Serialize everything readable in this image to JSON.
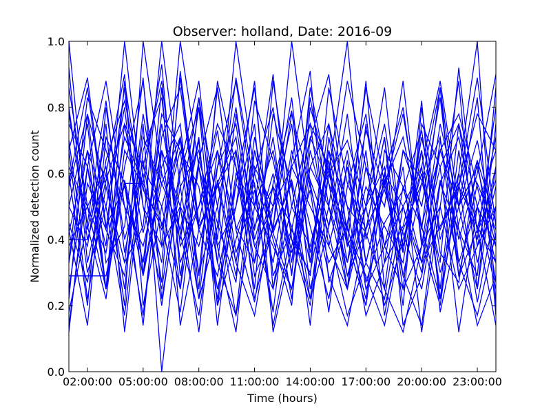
{
  "chart_data": {
    "type": "line",
    "title": "Observer: holland, Date: 2016-09",
    "xlabel": "Time (hours)",
    "ylabel": "Normalized detection count",
    "xlim": [
      1.0,
      24.0
    ],
    "ylim": [
      0.0,
      1.0
    ],
    "x_ticks": [
      {
        "value": 2,
        "label": "02:00:00"
      },
      {
        "value": 5,
        "label": "05:00:00"
      },
      {
        "value": 8,
        "label": "08:00:00"
      },
      {
        "value": 11,
        "label": "11:00:00"
      },
      {
        "value": 14,
        "label": "14:00:00"
      },
      {
        "value": 17,
        "label": "17:00:00"
      },
      {
        "value": 20,
        "label": "20:00:00"
      },
      {
        "value": 23,
        "label": "23:00:00"
      }
    ],
    "y_ticks": [
      {
        "value": 0.0,
        "label": "0.0"
      },
      {
        "value": 0.2,
        "label": "0.2"
      },
      {
        "value": 0.4,
        "label": "0.4"
      },
      {
        "value": 0.6,
        "label": "0.6"
      },
      {
        "value": 0.8,
        "label": "0.8"
      },
      {
        "value": 1.0,
        "label": "1.0"
      }
    ],
    "x": [
      1,
      2,
      3,
      4,
      5,
      6,
      7,
      8,
      9,
      10,
      11,
      12,
      13,
      14,
      15,
      16,
      17,
      18,
      19,
      20,
      21,
      22,
      23,
      24
    ],
    "line_color": "#0000ff",
    "grid": false,
    "series": [
      {
        "values": [
          1.0,
          0.43,
          0.71,
          0.57,
          0.29,
          0.86,
          0.14,
          0.43,
          0.57,
          0.29,
          0.71,
          0.43,
          1.0,
          0.57,
          0.29,
          0.14,
          0.43,
          0.71,
          0.29,
          0.57,
          0.86,
          0.43,
          0.14,
          0.29
        ]
      },
      {
        "values": [
          0.12,
          0.62,
          0.25,
          0.88,
          0.5,
          0.38,
          1.0,
          0.62,
          0.25,
          0.5,
          0.75,
          0.12,
          0.38,
          0.62,
          0.5,
          0.25,
          0.75,
          0.38,
          0.62,
          0.12,
          0.5,
          0.88,
          0.25,
          0.62
        ]
      },
      {
        "values": [
          0.8,
          0.4,
          0.6,
          0.2,
          1.0,
          0.6,
          0.4,
          0.8,
          0.2,
          0.4,
          0.6,
          0.8,
          0.4,
          0.2,
          0.6,
          1.0,
          0.4,
          0.6,
          0.2,
          0.8,
          0.4,
          0.6,
          1.0,
          0.2
        ]
      },
      {
        "values": [
          0.33,
          0.67,
          0.5,
          0.17,
          0.67,
          0.83,
          0.33,
          0.5,
          0.67,
          0.33,
          0.17,
          0.5,
          0.83,
          0.33,
          0.67,
          0.5,
          0.17,
          0.33,
          0.67,
          0.5,
          0.83,
          0.33,
          0.5,
          0.67
        ]
      },
      {
        "values": [
          0.67,
          0.89,
          0.44,
          0.56,
          0.33,
          0.78,
          0.67,
          0.22,
          0.44,
          0.89,
          0.56,
          0.33,
          0.67,
          0.44,
          0.22,
          0.56,
          0.78,
          0.33,
          0.44,
          0.67,
          0.22,
          0.56,
          0.89,
          0.44
        ]
      },
      {
        "values": [
          0.29,
          0.29,
          0.29,
          0.57,
          0.57,
          0.43,
          0.71,
          0.43,
          0.29,
          0.57,
          0.43,
          0.71,
          0.29,
          0.86,
          0.57,
          0.43,
          0.29,
          0.14,
          0.43,
          0.57,
          0.71,
          0.29,
          0.43,
          0.14
        ]
      },
      {
        "values": [
          0.5,
          0.75,
          0.25,
          0.62,
          0.88,
          0.38,
          0.5,
          0.12,
          0.62,
          0.75,
          0.38,
          0.25,
          0.5,
          0.75,
          0.62,
          0.38,
          0.88,
          0.25,
          0.12,
          0.38,
          0.62,
          0.75,
          0.5,
          0.25
        ]
      },
      {
        "values": [
          0.6,
          0.2,
          0.8,
          0.4,
          0.6,
          0.2,
          0.6,
          0.8,
          0.4,
          1.0,
          0.6,
          0.4,
          0.2,
          0.8,
          0.6,
          0.4,
          0.2,
          0.6,
          0.8,
          0.4,
          0.2,
          0.6,
          0.4,
          0.8
        ]
      },
      {
        "values": [
          0.86,
          0.5,
          0.36,
          0.71,
          0.57,
          0.93,
          0.29,
          0.64,
          0.86,
          0.43,
          0.21,
          0.57,
          0.79,
          0.36,
          0.64,
          0.29,
          0.5,
          0.86,
          0.36,
          0.71,
          0.43,
          0.57,
          0.21,
          0.5
        ]
      },
      {
        "values": [
          0.4,
          0.4,
          0.6,
          0.9,
          0.2,
          0.5,
          0.7,
          0.3,
          0.5,
          0.8,
          0.4,
          0.6,
          0.3,
          0.7,
          0.9,
          0.4,
          0.2,
          0.6,
          0.5,
          0.3,
          0.7,
          0.4,
          0.6,
          0.9
        ]
      },
      {
        "values": [
          0.22,
          0.78,
          0.56,
          0.33,
          0.44,
          1.0,
          0.56,
          0.22,
          0.67,
          0.44,
          0.33,
          0.78,
          0.56,
          0.22,
          0.44,
          0.67,
          0.33,
          0.56,
          0.78,
          0.44,
          0.22,
          0.67,
          0.33,
          0.56
        ]
      },
      {
        "values": [
          0.75,
          0.62,
          0.38,
          1.0,
          0.5,
          0.25,
          0.62,
          0.88,
          0.38,
          0.12,
          0.62,
          0.5,
          0.75,
          0.25,
          0.5,
          0.88,
          0.62,
          0.38,
          0.25,
          0.75,
          0.62,
          0.12,
          0.5,
          0.38
        ]
      },
      {
        "values": [
          0.43,
          0.14,
          0.71,
          0.57,
          0.14,
          0.71,
          0.86,
          0.43,
          0.57,
          0.71,
          0.29,
          0.43,
          0.57,
          0.14,
          0.71,
          0.43,
          0.86,
          0.57,
          0.29,
          0.14,
          0.57,
          0.71,
          0.43,
          0.71
        ]
      },
      {
        "values": [
          0.57,
          0.86,
          0.43,
          0.29,
          0.71,
          0.57,
          0.43,
          0.71,
          0.14,
          0.57,
          0.86,
          0.29,
          0.43,
          0.71,
          0.57,
          0.29,
          0.43,
          0.57,
          0.71,
          0.43,
          0.86,
          0.29,
          0.57,
          0.43
        ]
      },
      {
        "values": [
          0.18,
          0.45,
          0.82,
          0.36,
          0.64,
          0.27,
          0.91,
          0.45,
          0.73,
          0.36,
          0.55,
          0.18,
          0.64,
          0.91,
          0.27,
          0.45,
          0.73,
          0.55,
          0.36,
          0.82,
          0.18,
          0.45,
          0.64,
          0.27
        ]
      },
      {
        "values": [
          0.92,
          0.33,
          0.58,
          0.75,
          0.42,
          0.67,
          0.25,
          0.83,
          0.5,
          0.17,
          0.67,
          0.42,
          0.58,
          0.33,
          0.75,
          0.5,
          0.42,
          0.25,
          0.67,
          0.58,
          0.33,
          0.92,
          0.42,
          0.58
        ]
      },
      {
        "values": [
          0.38,
          0.5,
          0.62,
          0.25,
          0.75,
          0.0,
          0.5,
          0.38,
          0.62,
          0.88,
          0.5,
          0.38,
          0.25,
          0.62,
          0.75,
          0.38,
          0.5,
          0.62,
          0.25,
          0.38,
          0.75,
          0.5,
          0.62,
          0.38
        ]
      },
      {
        "values": [
          0.7,
          0.3,
          0.5,
          0.8,
          0.3,
          0.6,
          0.4,
          0.7,
          0.2,
          0.6,
          0.5,
          0.9,
          0.4,
          0.3,
          0.6,
          0.7,
          0.5,
          0.2,
          0.4,
          0.6,
          0.3,
          0.5,
          0.7,
          0.4
        ]
      },
      {
        "values": [
          0.25,
          0.62,
          0.88,
          0.5,
          0.38,
          0.62,
          0.75,
          0.25,
          0.88,
          0.62,
          0.38,
          0.5,
          0.62,
          0.75,
          0.38,
          0.25,
          0.62,
          0.5,
          0.88,
          0.38,
          0.5,
          0.25,
          0.38,
          0.62
        ]
      },
      {
        "values": [
          0.56,
          0.78,
          0.33,
          0.44,
          0.89,
          0.22,
          0.56,
          0.67,
          0.33,
          0.78,
          0.44,
          0.56,
          0.22,
          0.67,
          0.44,
          0.78,
          0.33,
          0.22,
          0.56,
          0.44,
          0.67,
          0.78,
          0.56,
          0.33
        ]
      },
      {
        "values": [
          0.45,
          0.27,
          0.64,
          0.82,
          0.55,
          0.45,
          0.18,
          0.64,
          0.45,
          0.27,
          0.82,
          0.64,
          0.36,
          0.55,
          0.18,
          0.64,
          0.27,
          0.45,
          0.55,
          0.73,
          0.36,
          0.27,
          0.64,
          0.45
        ]
      },
      {
        "values": [
          0.62,
          0.5,
          0.25,
          0.75,
          0.62,
          0.88,
          0.38,
          0.5,
          0.75,
          0.62,
          0.25,
          0.88,
          0.5,
          0.38,
          0.62,
          0.25,
          0.5,
          0.75,
          0.38,
          0.62,
          0.88,
          0.5,
          0.25,
          0.75
        ]
      },
      {
        "values": [
          0.33,
          0.83,
          0.67,
          0.5,
          0.17,
          0.67,
          0.5,
          0.83,
          0.33,
          0.17,
          0.5,
          0.67,
          0.33,
          0.83,
          0.5,
          0.33,
          0.67,
          0.17,
          0.5,
          0.33,
          0.67,
          0.5,
          0.83,
          0.17
        ]
      },
      {
        "values": [
          0.78,
          0.44,
          0.22,
          0.67,
          0.56,
          0.33,
          0.89,
          0.44,
          0.56,
          0.67,
          0.22,
          0.44,
          0.78,
          0.56,
          0.33,
          0.44,
          0.22,
          0.67,
          0.56,
          0.33,
          0.44,
          0.56,
          0.78,
          0.67
        ]
      },
      {
        "values": [
          0.5,
          0.38,
          0.75,
          0.12,
          0.62,
          0.5,
          0.25,
          0.62,
          0.38,
          0.5,
          0.88,
          0.25,
          0.62,
          0.5,
          0.38,
          0.62,
          0.25,
          0.38,
          0.5,
          0.62,
          0.25,
          0.75,
          0.38,
          0.5
        ]
      },
      {
        "values": [
          0.14,
          0.57,
          0.43,
          0.86,
          0.29,
          0.57,
          0.71,
          0.29,
          0.86,
          0.43,
          0.57,
          0.14,
          0.43,
          0.29,
          0.86,
          0.57,
          0.43,
          0.71,
          0.14,
          0.29,
          0.57,
          0.43,
          0.29,
          0.86
        ]
      },
      {
        "values": [
          0.67,
          0.22,
          0.56,
          0.33,
          0.78,
          0.44,
          0.67,
          0.56,
          0.22,
          0.67,
          0.33,
          0.56,
          0.44,
          0.22,
          0.67,
          0.33,
          0.56,
          0.44,
          0.33,
          0.67,
          0.22,
          0.56,
          0.44,
          0.33
        ]
      },
      {
        "values": [
          0.42,
          0.67,
          0.25,
          0.58,
          0.33,
          0.75,
          0.42,
          0.17,
          0.58,
          0.33,
          0.67,
          0.42,
          0.25,
          0.58,
          0.42,
          0.17,
          0.33,
          0.58,
          0.42,
          0.25,
          0.58,
          0.33,
          0.17,
          0.42
        ]
      }
    ]
  }
}
